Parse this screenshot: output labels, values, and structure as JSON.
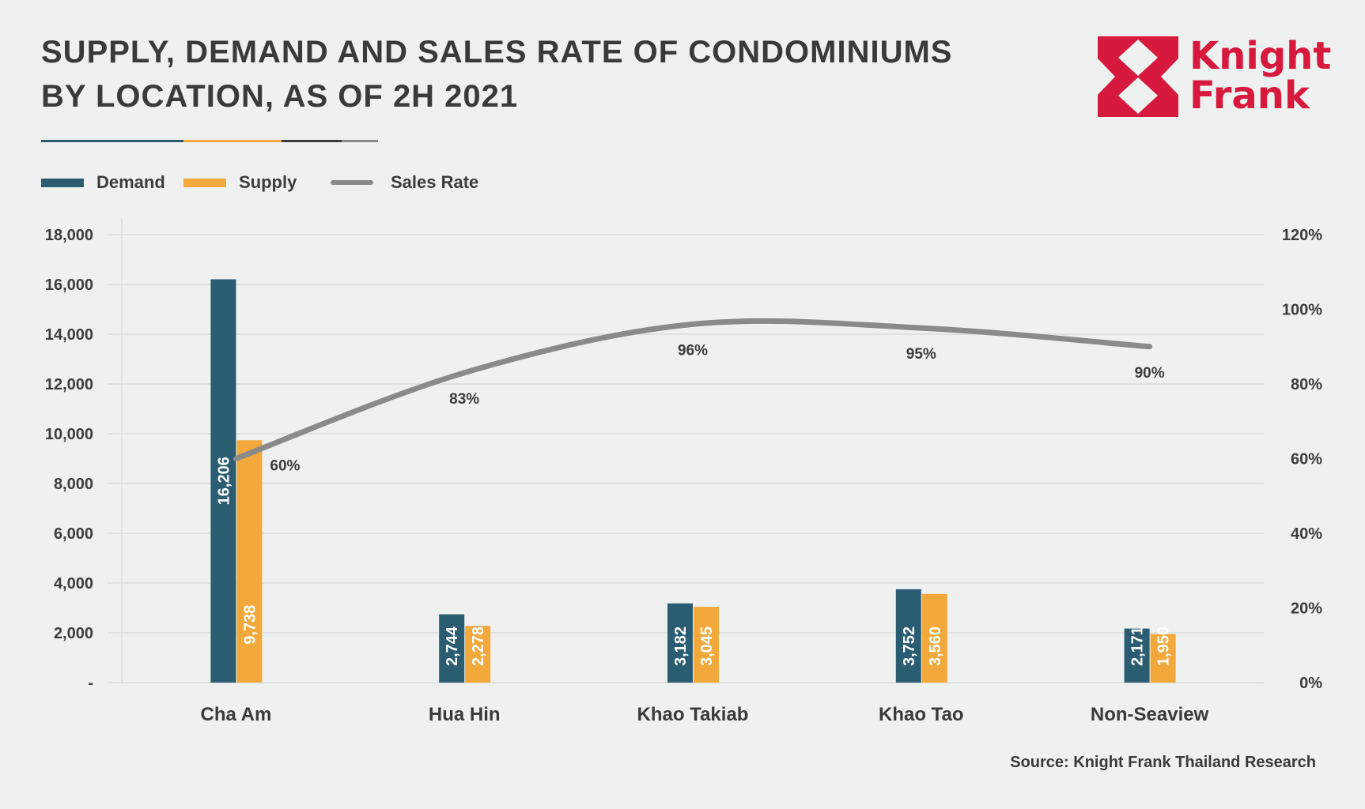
{
  "title_lines": [
    "SUPPLY, DEMAND AND SALES RATE OF CONDOMINIUMS",
    "BY LOCATION, AS OF 2H 2021"
  ],
  "brand": {
    "line1": "Knight",
    "line2": "Frank",
    "color": "#d7193e"
  },
  "source": "Source: Knight Frank Thailand Research",
  "colors": {
    "demand": "#2a5c72",
    "supply": "#f2a83b",
    "sales_rate": "#8a8a8a",
    "grid": "#d4d8d7"
  },
  "underline_colors": [
    "#2a5c72",
    "#f2a83b",
    "#3c3c3c",
    "#8a8a8a"
  ],
  "legend": [
    {
      "label": "Demand",
      "color": "#2a5c72",
      "kind": "bar"
    },
    {
      "label": "Supply",
      "color": "#f2a83b",
      "kind": "bar"
    },
    {
      "label": "Sales Rate",
      "color": "#8a8a8a",
      "kind": "line"
    }
  ],
  "chart_data": {
    "type": "bar",
    "title": "SUPPLY, DEMAND AND SALES RATE OF CONDOMINIUMS BY LOCATION, AS OF 2H 2021",
    "categories": [
      "Cha Am",
      "Hua Hin",
      "Khao Takiab",
      "Khao Tao",
      "Non-Seaview"
    ],
    "series": [
      {
        "name": "Demand",
        "type": "bar",
        "axis": "left",
        "values": [
          16206,
          2744,
          3182,
          3752,
          2171
        ],
        "labels": [
          "16,206",
          "2,744",
          "3,182",
          "3,752",
          "2,171"
        ]
      },
      {
        "name": "Supply",
        "type": "bar",
        "axis": "left",
        "values": [
          9738,
          2278,
          3045,
          3560,
          1950
        ],
        "labels": [
          "9,738",
          "2,278",
          "3,045",
          "3,560",
          "1,950"
        ]
      },
      {
        "name": "Sales Rate",
        "type": "line",
        "axis": "right",
        "values": [
          60,
          83,
          96,
          95,
          90
        ],
        "labels": [
          "60%",
          "83%",
          "96%",
          "95%",
          "90%"
        ]
      }
    ],
    "left_axis": {
      "min": 0,
      "max": 18000,
      "ticks": [
        0,
        2000,
        4000,
        6000,
        8000,
        10000,
        12000,
        14000,
        16000,
        18000
      ],
      "tick_labels": [
        "-",
        "2,000",
        "4,000",
        "6,000",
        "8,000",
        "10,000",
        "12,000",
        "14,000",
        "16,000",
        "18,000"
      ]
    },
    "right_axis": {
      "min": 0,
      "max": 120,
      "ticks": [
        0,
        20,
        40,
        60,
        80,
        100,
        120
      ],
      "tick_labels": [
        "0%",
        "20%",
        "40%",
        "60%",
        "80%",
        "100%",
        "120%"
      ]
    },
    "legend_position": "top-left",
    "grid": true
  }
}
